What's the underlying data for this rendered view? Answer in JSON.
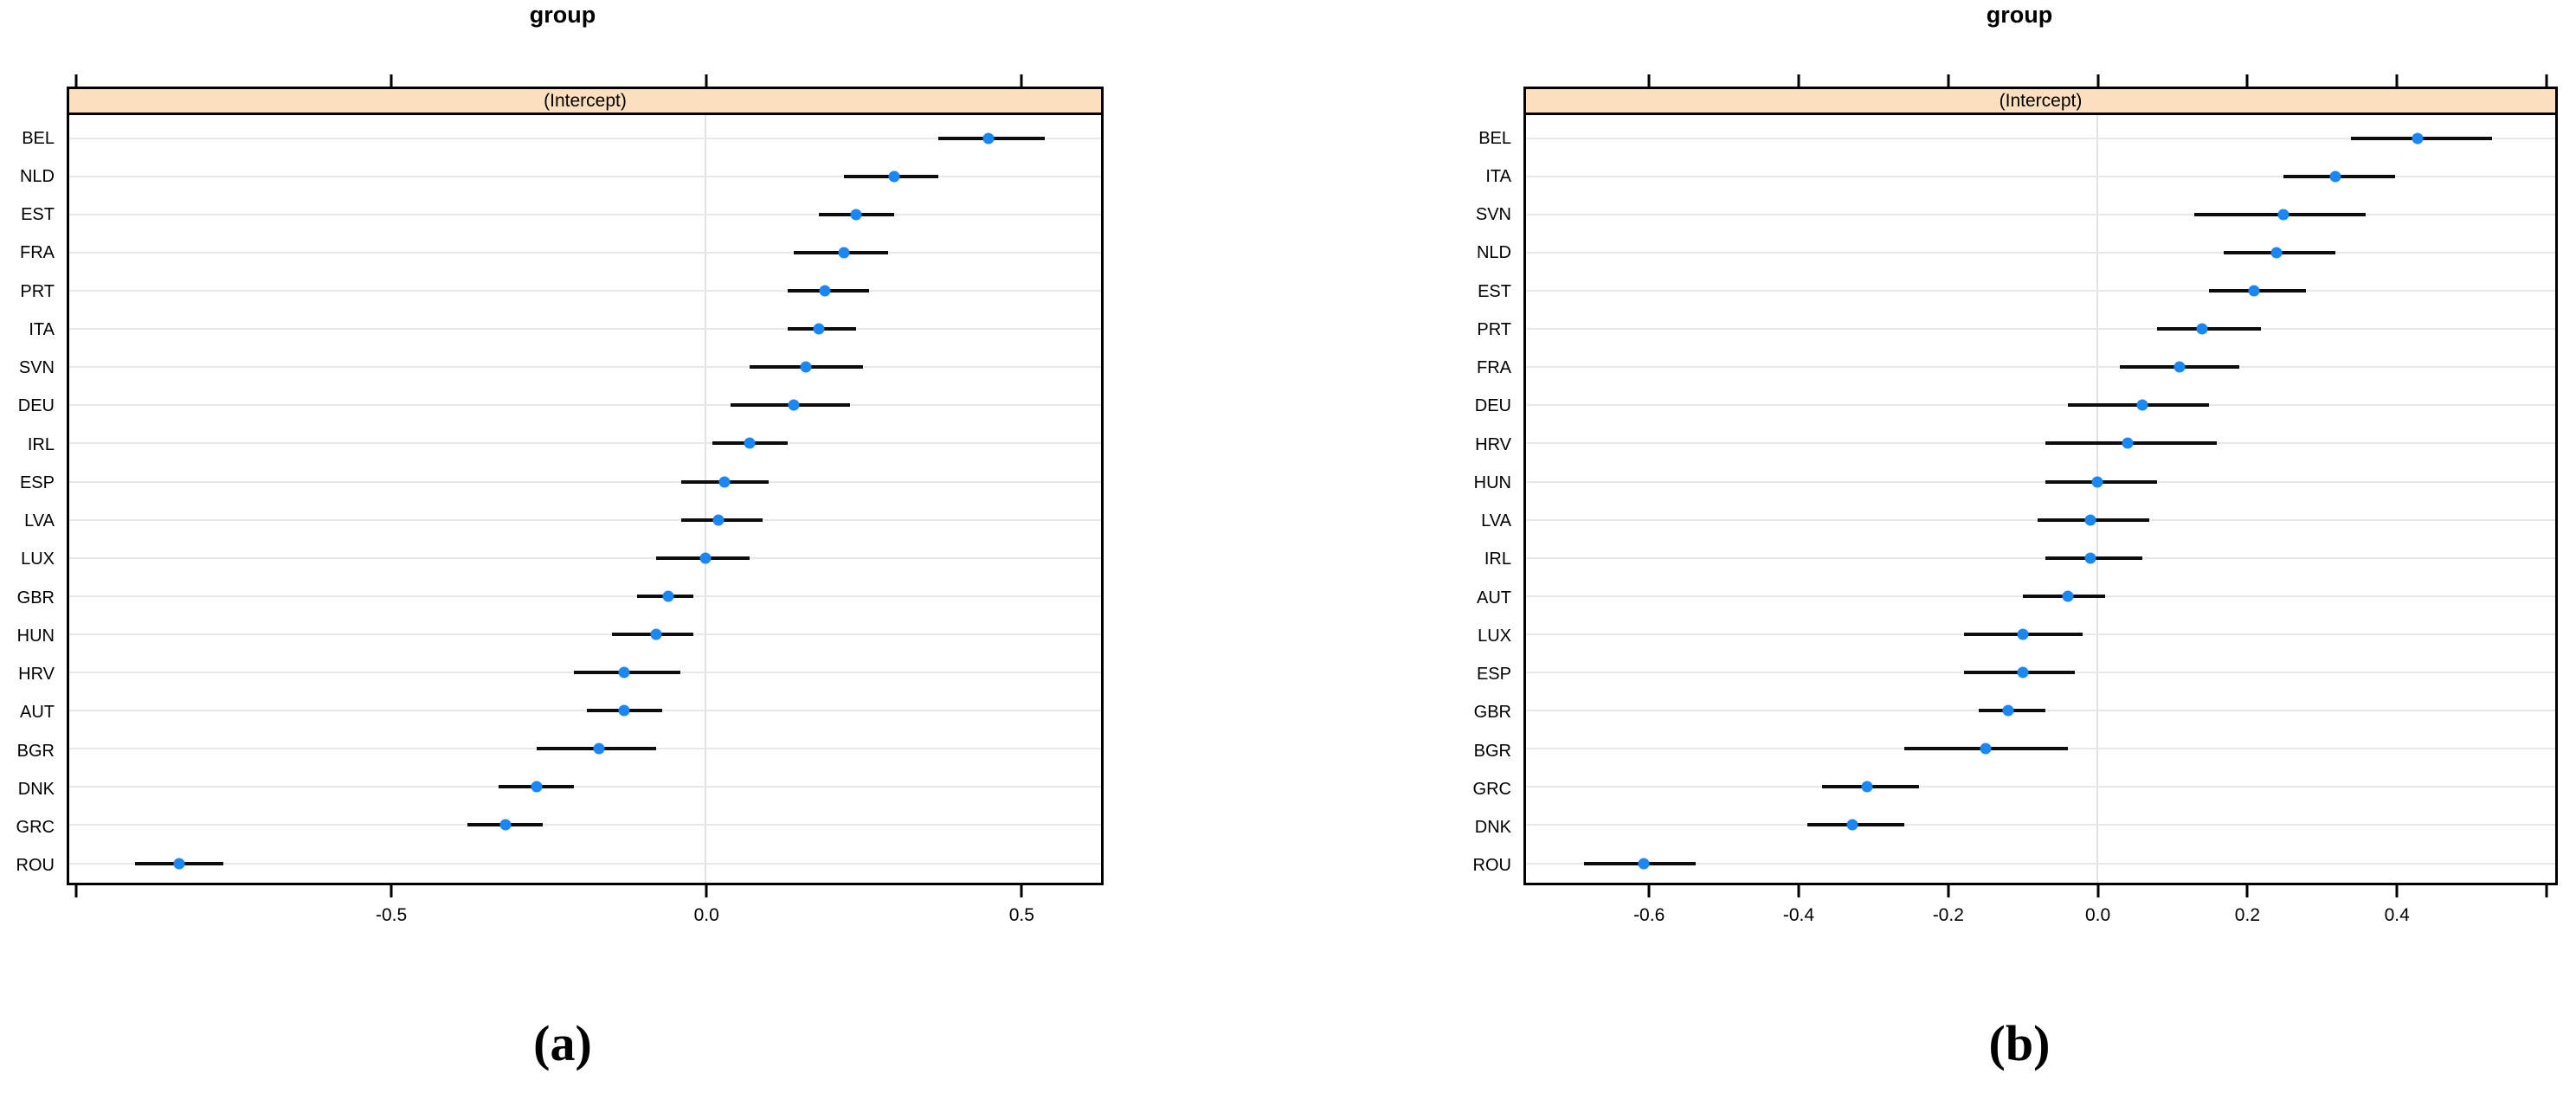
{
  "colors": {
    "dot": "#1b87f5",
    "ci_bar": "#0d0d0d",
    "strip_background": "#fcdfbe",
    "panel_border": "#000000",
    "gridline": "#e8e8e8",
    "zero_line": "#e2e2e2",
    "text": "#000000"
  },
  "chart_data": [
    {
      "type": "scatter",
      "subtype": "dotplot-with-error-bars",
      "id": "a",
      "title": "group",
      "strip_label": "(Intercept)",
      "caption": "(a)",
      "xlabel": "",
      "ylabel": "",
      "legend": "none",
      "grid": "horizontal row lines + vertical zero reference line",
      "xlim": [
        -1.015,
        0.63
      ],
      "x_ticks": [
        -1.0,
        -0.5,
        0.0,
        0.5
      ],
      "x_tick_labels": [
        "",
        "-0.5",
        "0.0",
        "0.5"
      ],
      "categories": [
        "BEL",
        "NLD",
        "EST",
        "FRA",
        "PRT",
        "ITA",
        "SVN",
        "DEU",
        "IRL",
        "ESP",
        "LVA",
        "LUX",
        "GBR",
        "HUN",
        "HRV",
        "AUT",
        "BGR",
        "DNK",
        "GRC",
        "ROU"
      ],
      "series": [
        {
          "name": "estimate",
          "values": [
            0.45,
            0.3,
            0.24,
            0.22,
            0.19,
            0.18,
            0.16,
            0.14,
            0.07,
            0.03,
            0.02,
            0.0,
            -0.06,
            -0.08,
            -0.13,
            -0.13,
            -0.17,
            -0.27,
            -0.32,
            -0.84
          ]
        },
        {
          "name": "ci_lower",
          "values": [
            0.37,
            0.22,
            0.18,
            0.14,
            0.13,
            0.13,
            0.07,
            0.04,
            0.01,
            -0.04,
            -0.04,
            -0.08,
            -0.11,
            -0.15,
            -0.21,
            -0.19,
            -0.27,
            -0.33,
            -0.38,
            -0.91
          ]
        },
        {
          "name": "ci_upper",
          "values": [
            0.54,
            0.37,
            0.3,
            0.29,
            0.26,
            0.24,
            0.25,
            0.23,
            0.13,
            0.1,
            0.09,
            0.07,
            -0.02,
            -0.02,
            -0.04,
            -0.07,
            -0.08,
            -0.21,
            -0.26,
            -0.77
          ]
        }
      ]
    },
    {
      "type": "scatter",
      "subtype": "dotplot-with-error-bars",
      "id": "b",
      "title": "group",
      "strip_label": "(Intercept)",
      "caption": "(b)",
      "xlabel": "",
      "ylabel": "",
      "legend": "none",
      "grid": "horizontal row lines + vertical zero reference line",
      "xlim": [
        -0.768,
        0.615
      ],
      "x_ticks": [
        -0.6,
        -0.4,
        -0.2,
        0.0,
        0.2,
        0.4,
        0.6
      ],
      "x_tick_labels": [
        "-0.6",
        "-0.4",
        "-0.2",
        "0.0",
        "0.2",
        "0.4",
        ""
      ],
      "categories": [
        "BEL",
        "ITA",
        "SVN",
        "NLD",
        "EST",
        "PRT",
        "FRA",
        "DEU",
        "HRV",
        "HUN",
        "LVA",
        "IRL",
        "AUT",
        "LUX",
        "ESP",
        "GBR",
        "BGR",
        "GRC",
        "DNK",
        "ROU"
      ],
      "series": [
        {
          "name": "estimate",
          "values": [
            0.43,
            0.32,
            0.25,
            0.24,
            0.21,
            0.14,
            0.11,
            0.06,
            0.04,
            0.0,
            -0.01,
            -0.01,
            -0.04,
            -0.1,
            -0.1,
            -0.12,
            -0.15,
            -0.31,
            -0.33,
            -0.61
          ]
        },
        {
          "name": "ci_lower",
          "values": [
            0.34,
            0.25,
            0.13,
            0.17,
            0.15,
            0.08,
            0.03,
            -0.04,
            -0.07,
            -0.07,
            -0.08,
            -0.07,
            -0.1,
            -0.18,
            -0.18,
            -0.16,
            -0.26,
            -0.37,
            -0.39,
            -0.69
          ]
        },
        {
          "name": "ci_upper",
          "values": [
            0.53,
            0.4,
            0.36,
            0.32,
            0.28,
            0.22,
            0.19,
            0.15,
            0.16,
            0.08,
            0.07,
            0.06,
            0.01,
            -0.02,
            -0.03,
            -0.07,
            -0.04,
            -0.24,
            -0.26,
            -0.54
          ]
        }
      ]
    }
  ]
}
